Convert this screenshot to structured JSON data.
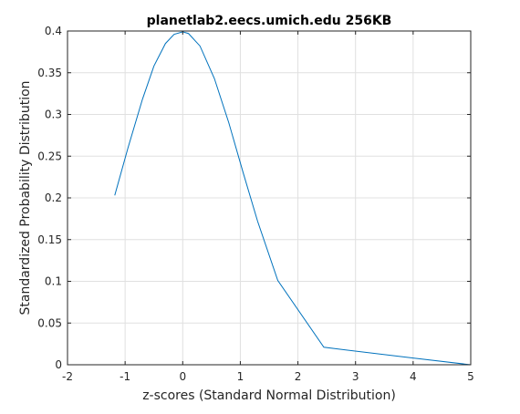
{
  "chart_data": {
    "type": "line",
    "title": "planetlab2.eecs.umich.edu 256KB",
    "xlabel": "z-scores (Standard Normal Distribution)",
    "ylabel": "Standardized Probability Distribution",
    "xlim": [
      -2,
      5
    ],
    "ylim": [
      0,
      0.4
    ],
    "xticks": [
      -2,
      -1,
      0,
      1,
      2,
      3,
      4,
      5
    ],
    "yticks": [
      0,
      0.05,
      0.1,
      0.15,
      0.2,
      0.25,
      0.3,
      0.35,
      0.4
    ],
    "xtick_labels": [
      "-2",
      "-1",
      "0",
      "1",
      "2",
      "3",
      "4",
      "5"
    ],
    "ytick_labels": [
      "0",
      "0.05",
      "0.1",
      "0.15",
      "0.2",
      "0.25",
      "0.3",
      "0.35",
      "0.4"
    ],
    "grid": true,
    "series": [
      {
        "color": "#0072bd",
        "x": [
          -1.18,
          -0.95,
          -0.7,
          -0.5,
          -0.3,
          -0.15,
          0.0,
          0.1,
          0.3,
          0.55,
          0.8,
          1.05,
          1.3,
          1.65,
          2.45,
          4.0,
          5.0
        ],
        "y": [
          0.203,
          0.26,
          0.318,
          0.358,
          0.385,
          0.396,
          0.399,
          0.397,
          0.382,
          0.343,
          0.29,
          0.23,
          0.172,
          0.101,
          0.021,
          0.008,
          0.0
        ]
      }
    ]
  }
}
